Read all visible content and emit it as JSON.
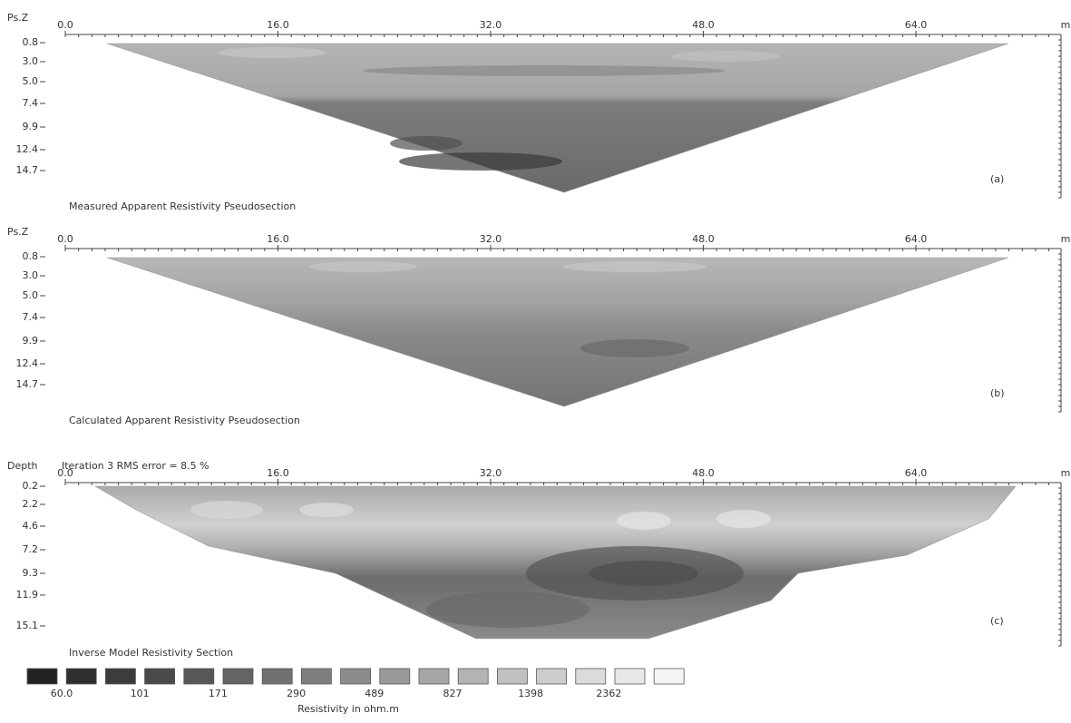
{
  "panels": [
    {
      "axis_label": "Ps.Z",
      "x_unit": "m",
      "xticks": [
        "0.0",
        "16.0",
        "32.0",
        "48.0",
        "64.0"
      ],
      "depth_ticks": [
        "0.8",
        "3.0",
        "5.0",
        "7.4",
        "9.9",
        "12.4",
        "14.7"
      ],
      "tag": "(a)",
      "caption": "Measured Apparent Resistivity Pseudosection"
    },
    {
      "axis_label": "Ps.Z",
      "x_unit": "m",
      "xticks": [
        "0.0",
        "16.0",
        "32.0",
        "48.0",
        "64.0"
      ],
      "depth_ticks": [
        "0.8",
        "3.0",
        "5.0",
        "7.4",
        "9.9",
        "12.4",
        "14.7"
      ],
      "tag": "(b)",
      "caption": "Calculated Apparent Resistivity Pseudosection"
    },
    {
      "axis_label": "Depth",
      "note": "Iteration 3 RMS error = 8.5 %",
      "x_unit": "m",
      "xticks": [
        "0.0",
        "16.0",
        "32.0",
        "48.0",
        "64.0"
      ],
      "depth_ticks": [
        "0.2",
        "2.2",
        "4.6",
        "7.2",
        "9.3",
        "11.9",
        "15.1"
      ],
      "tag": "(c)",
      "caption": "Inverse Model Resistivity Section"
    }
  ],
  "legend": {
    "labels": [
      "60.0",
      "101",
      "171",
      "290",
      "489",
      "827",
      "1398",
      "2362"
    ],
    "title": "Resistivity in ohm.m"
  }
}
